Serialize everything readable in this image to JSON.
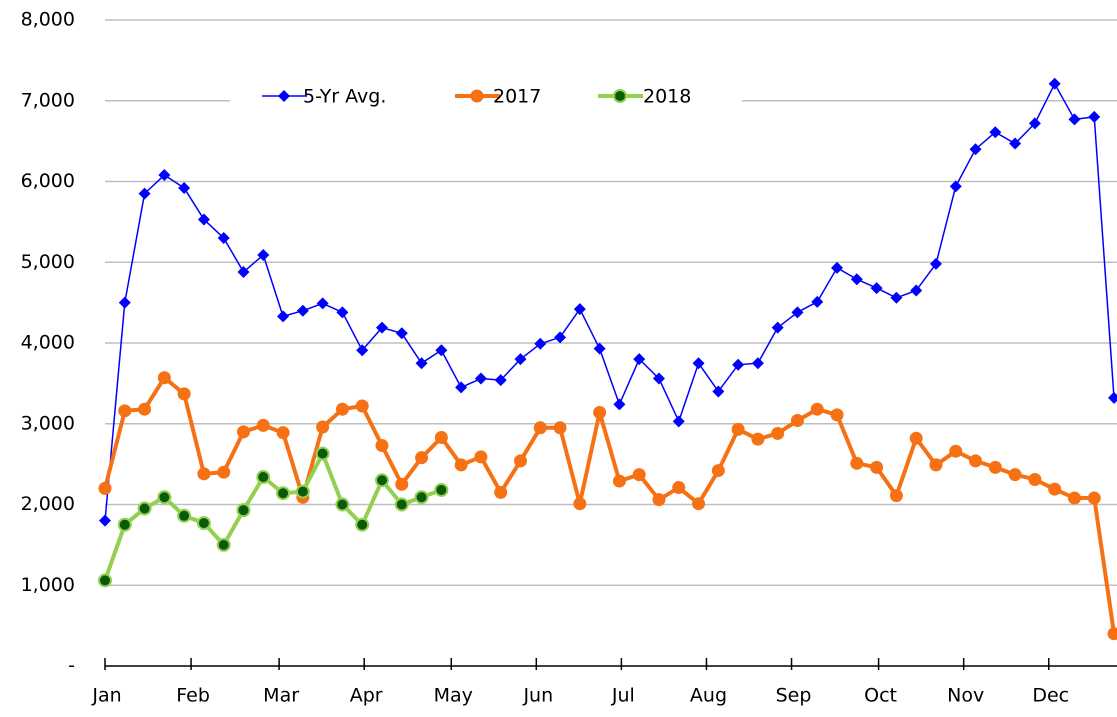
{
  "chart_data": {
    "type": "line",
    "xlim": [
      0,
      51.15
    ],
    "xticks": [
      {
        "value": 0,
        "label": "Jan"
      },
      {
        "value": 4.35,
        "label": "Feb"
      },
      {
        "value": 8.8,
        "label": "Mar"
      },
      {
        "value": 13.1,
        "label": "Apr"
      },
      {
        "value": 17.5,
        "label": "May"
      },
      {
        "value": 21.8,
        "label": "Jun"
      },
      {
        "value": 26.1,
        "label": "Jul"
      },
      {
        "value": 30.4,
        "label": "Aug"
      },
      {
        "value": 34.7,
        "label": "Sep"
      },
      {
        "value": 39.1,
        "label": "Oct"
      },
      {
        "value": 43.4,
        "label": "Nov"
      },
      {
        "value": 47.7,
        "label": "Dec"
      }
    ],
    "ylim": [
      0,
      8000
    ],
    "yticks": [
      {
        "value": 0,
        "label": "-"
      },
      {
        "value": 1000,
        "label": "1,000"
      },
      {
        "value": 2000,
        "label": "2,000"
      },
      {
        "value": 3000,
        "label": "3,000"
      },
      {
        "value": 4000,
        "label": "4,000"
      },
      {
        "value": 5000,
        "label": "5,000"
      },
      {
        "value": 6000,
        "label": "6,000"
      },
      {
        "value": 7000,
        "label": "7,000"
      },
      {
        "value": 8000,
        "label": "8,000"
      }
    ],
    "grid": true,
    "legend": "top",
    "series": [
      {
        "name": "5-Yr Avg.",
        "color": "#0000ff",
        "marker": "diamond",
        "values": [
          1800,
          4500,
          5850,
          6080,
          5920,
          5530,
          5300,
          4880,
          5090,
          4330,
          4400,
          4490,
          4380,
          3910,
          4190,
          4120,
          3750,
          3910,
          3450,
          3560,
          3540,
          3800,
          3990,
          4070,
          4420,
          3930,
          3240,
          3800,
          3560,
          3030,
          3750,
          3400,
          3730,
          3750,
          4190,
          4380,
          4510,
          4930,
          4790,
          4680,
          4560,
          4650,
          4980,
          5940,
          6400,
          6610,
          6470,
          6720,
          7210,
          6770,
          6800,
          3320
        ]
      },
      {
        "name": "2017",
        "color": "#f57114",
        "marker": "circle",
        "values": [
          2200,
          3160,
          3180,
          3570,
          3370,
          2380,
          2400,
          2900,
          2980,
          2890,
          2090,
          2960,
          3180,
          3220,
          2730,
          2250,
          2580,
          2830,
          2490,
          2590,
          2150,
          2540,
          2950,
          2950,
          2010,
          3140,
          2290,
          2370,
          2060,
          2210,
          2010,
          2420,
          2930,
          2810,
          2880,
          3040,
          3180,
          3110,
          2510,
          2460,
          2110,
          2820,
          2490,
          2660,
          2540,
          2460,
          2370,
          2310,
          2190,
          2080,
          2080,
          400
        ]
      },
      {
        "name": "2018",
        "color": "#92d050",
        "marker": "circle-dark",
        "values": [
          1060,
          1750,
          1950,
          2090,
          1860,
          1770,
          1500,
          1930,
          2340,
          2140,
          2160,
          2630,
          2000,
          1750,
          2300,
          2000,
          2090,
          2180,
          null,
          null,
          null,
          null,
          null,
          null,
          null,
          null,
          null,
          null,
          null,
          null,
          null,
          null,
          null,
          null,
          null,
          null,
          null,
          null,
          null,
          null,
          null,
          null,
          null,
          null,
          null,
          null,
          null,
          null,
          null,
          null,
          null,
          null
        ]
      }
    ]
  }
}
